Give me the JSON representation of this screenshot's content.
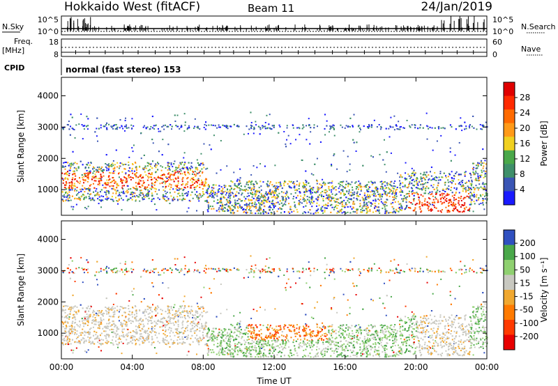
{
  "header": {
    "title": "Hokkaido West (fitACF)",
    "beam": "Beam 11",
    "date": "24/Jan/2019"
  },
  "strip": {
    "left_labels": {
      "nsky": "N.Sky",
      "freq": "Freq.",
      "freq_unit": "[MHz]",
      "cpid": "CPID"
    },
    "right_labels": {
      "nsearch": "N.Search",
      "nave": "Nave"
    },
    "left_ticks_top": [
      "10^5",
      "10^0"
    ],
    "right_ticks_top": [
      "10^5",
      "10^0"
    ],
    "left_ticks_freq": [
      "18",
      "8"
    ],
    "right_ticks_nave": [
      "60",
      "0"
    ],
    "cpid_text": "normal (fast stereo) 153"
  },
  "colors": {
    "power_scale": [
      "#1a1aff",
      "#3a55b4",
      "#3f8f6a",
      "#4aa84a",
      "#f0d020",
      "#ff9a18",
      "#ff6a00",
      "#ff2a00",
      "#e00000"
    ],
    "velocity_scale": [
      "#3050c0",
      "#4aa84a",
      "#8fd070",
      "#c8c8c0",
      "#f0a830",
      "#ff7a00",
      "#ff3a00",
      "#e80000"
    ]
  },
  "chart_data": [
    {
      "type": "heatmap",
      "ylabel": "Slant Range [km]",
      "ylim": [
        180,
        4590
      ],
      "yticks": [
        "1000",
        "2000",
        "3000",
        "4000"
      ],
      "xlim": [
        "00:00",
        "24:00"
      ],
      "colorbar": {
        "label": "Power [dB]",
        "ticks": [
          "4",
          "8",
          "12",
          "16",
          "20",
          "24",
          "28"
        ],
        "range": [
          0,
          30
        ]
      }
    },
    {
      "type": "heatmap",
      "ylabel": "Slant Range [km]",
      "ylim": [
        180,
        4590
      ],
      "yticks": [
        "1000",
        "2000",
        "3000",
        "4000"
      ],
      "xlabel": "Time UT",
      "xticks": [
        "00:00",
        "04:00",
        "08:00",
        "12:00",
        "16:00",
        "20:00",
        "00:00"
      ],
      "colorbar": {
        "label": "Velocity [m s⁻¹]",
        "ticks": [
          "200",
          "100",
          "50",
          "15",
          "-15",
          "-50",
          "-100",
          "-200"
        ],
        "range": [
          -250,
          250
        ]
      }
    }
  ]
}
